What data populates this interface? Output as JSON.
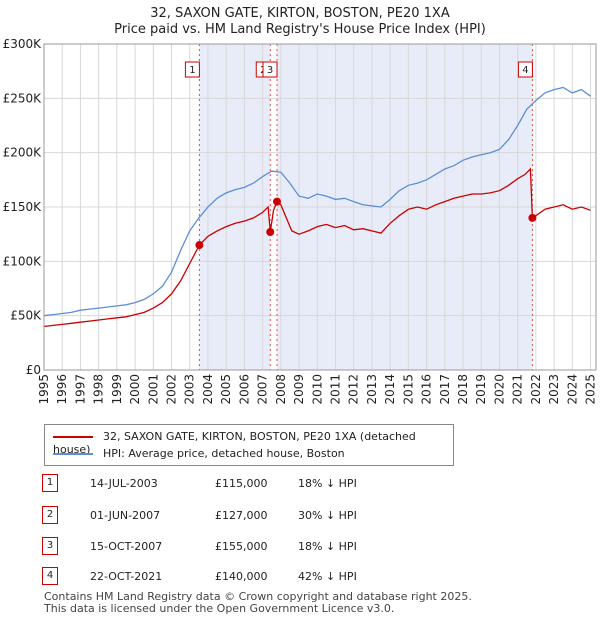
{
  "title": "32, SAXON GATE, KIRTON, BOSTON, PE20 1XA",
  "subtitle": "Price paid vs. HM Land Registry's House Price Index (HPI)",
  "colors": {
    "property": "#cc0000",
    "hpi": "#5b8fd6",
    "shade": "#e8ecf8",
    "grid": "#d8d8d8",
    "marker_line": "#e05050"
  },
  "legend": {
    "property_label": "32, SAXON GATE, KIRTON, BOSTON, PE20 1XA (detached house)",
    "hpi_label": "HPI: Average price, detached house, Boston"
  },
  "sales": [
    {
      "num": "1",
      "date": "14-JUL-2003",
      "price": "£115,000",
      "hpi_diff": "18% ↓ HPI"
    },
    {
      "num": "2",
      "date": "01-JUN-2007",
      "price": "£127,000",
      "hpi_diff": "30% ↓ HPI"
    },
    {
      "num": "3",
      "date": "15-OCT-2007",
      "price": "£155,000",
      "hpi_diff": "18% ↓ HPI"
    },
    {
      "num": "4",
      "date": "22-OCT-2021",
      "price": "£140,000",
      "hpi_diff": "42% ↓ HPI"
    }
  ],
  "footer": {
    "line1": "Contains HM Land Registry data © Crown copyright and database right 2025.",
    "line2": "This data is licensed under the Open Government Licence v3.0."
  },
  "chart_data": {
    "type": "line",
    "title": "32, SAXON GATE, KIRTON, BOSTON, PE20 1XA",
    "subtitle": "Price paid vs. HM Land Registry's House Price Index (HPI)",
    "xlabel": "",
    "ylabel": "",
    "xlim": [
      1995,
      2025.3
    ],
    "ylim": [
      0,
      300000
    ],
    "yticks": [
      0,
      50000,
      100000,
      150000,
      200000,
      250000,
      300000
    ],
    "ytick_labels": [
      "£0",
      "£50K",
      "£100K",
      "£150K",
      "£200K",
      "£250K",
      "£300K"
    ],
    "xticks": [
      1995,
      1996,
      1997,
      1998,
      1999,
      2000,
      2001,
      2002,
      2003,
      2004,
      2005,
      2006,
      2007,
      2008,
      2009,
      2010,
      2011,
      2012,
      2013,
      2014,
      2015,
      2016,
      2017,
      2018,
      2019,
      2020,
      2021,
      2022,
      2023,
      2024,
      2025
    ],
    "xtick_labels": [
      "1995",
      "1996",
      "1997",
      "1998",
      "1999",
      "2000",
      "2001",
      "2002",
      "2003",
      "2004",
      "2005",
      "2006",
      "2007",
      "2008",
      "2009",
      "2010",
      "2011",
      "2012",
      "2013",
      "2014",
      "2015",
      "2016",
      "2017",
      "2018",
      "2019",
      "2020",
      "2021",
      "2022",
      "2023",
      "2024",
      "2025"
    ],
    "grid": true,
    "shaded_periods": [
      [
        2003.53,
        2007.42
      ],
      [
        2007.79,
        2021.81
      ]
    ],
    "series": [
      {
        "name": "32, SAXON GATE, KIRTON, BOSTON, PE20 1XA (detached house)",
        "color": "#cc0000",
        "x": [
          1995,
          1995.5,
          1996,
          1996.5,
          1997,
          1997.5,
          1998,
          1998.5,
          1999,
          1999.5,
          2000,
          2000.5,
          2001,
          2001.5,
          2002,
          2002.5,
          2003,
          2003.53,
          2004,
          2004.5,
          2005,
          2005.5,
          2006,
          2006.5,
          2007,
          2007.3,
          2007.42,
          2007.6,
          2007.79,
          2008,
          2008.3,
          2008.6,
          2009,
          2009.5,
          2010,
          2010.5,
          2011,
          2011.5,
          2012,
          2012.5,
          2013,
          2013.5,
          2014,
          2014.5,
          2015,
          2015.5,
          2016,
          2016.5,
          2017,
          2017.5,
          2018,
          2018.5,
          2019,
          2019.5,
          2020,
          2020.5,
          2021,
          2021.4,
          2021.7,
          2021.81,
          2022,
          2022.5,
          2023,
          2023.5,
          2024,
          2024.5,
          2025
        ],
        "y": [
          40000,
          41000,
          42000,
          43000,
          44000,
          45000,
          46000,
          47000,
          48000,
          49000,
          51000,
          53000,
          57000,
          62000,
          70000,
          82000,
          98000,
          115000,
          123000,
          128000,
          132000,
          135000,
          137000,
          140000,
          145000,
          150000,
          127000,
          147000,
          155000,
          152000,
          140000,
          128000,
          125000,
          128000,
          132000,
          134000,
          131000,
          133000,
          129000,
          130000,
          128000,
          126000,
          135000,
          142000,
          148000,
          150000,
          148000,
          152000,
          155000,
          158000,
          160000,
          162000,
          162000,
          163000,
          165000,
          170000,
          176000,
          180000,
          185000,
          140000,
          142000,
          148000,
          150000,
          152000,
          148000,
          150000,
          147000
        ]
      },
      {
        "name": "HPI: Average price, detached house, Boston",
        "color": "#5b8fd6",
        "x": [
          1995,
          1995.5,
          1996,
          1996.5,
          1997,
          1997.5,
          1998,
          1998.5,
          1999,
          1999.5,
          2000,
          2000.5,
          2001,
          2001.5,
          2002,
          2002.5,
          2003,
          2003.5,
          2004,
          2004.5,
          2005,
          2005.5,
          2006,
          2006.5,
          2007,
          2007.5,
          2008,
          2008.5,
          2009,
          2009.5,
          2010,
          2010.5,
          2011,
          2011.5,
          2012,
          2012.5,
          2013,
          2013.5,
          2014,
          2014.5,
          2015,
          2015.5,
          2016,
          2016.5,
          2017,
          2017.5,
          2018,
          2018.5,
          2019,
          2019.5,
          2020,
          2020.5,
          2021,
          2021.5,
          2022,
          2022.5,
          2023,
          2023.5,
          2024,
          2024.5,
          2025
        ],
        "y": [
          50000,
          51000,
          52000,
          53000,
          55000,
          56000,
          57000,
          58000,
          59000,
          60000,
          62000,
          65000,
          70000,
          77000,
          90000,
          110000,
          128000,
          140000,
          150000,
          158000,
          163000,
          166000,
          168000,
          172000,
          178000,
          183000,
          182000,
          172000,
          160000,
          158000,
          162000,
          160000,
          157000,
          158000,
          155000,
          152000,
          151000,
          150000,
          157000,
          165000,
          170000,
          172000,
          175000,
          180000,
          185000,
          188000,
          193000,
          196000,
          198000,
          200000,
          203000,
          212000,
          225000,
          240000,
          248000,
          255000,
          258000,
          260000,
          255000,
          258000,
          252000
        ]
      }
    ],
    "sale_markers": [
      {
        "label": "1",
        "x": 2003.53,
        "y": 115000
      },
      {
        "label": "2",
        "x": 2007.42,
        "y": 127000
      },
      {
        "label": "3",
        "x": 2007.79,
        "y": 155000
      },
      {
        "label": "4",
        "x": 2021.81,
        "y": 140000
      }
    ]
  }
}
